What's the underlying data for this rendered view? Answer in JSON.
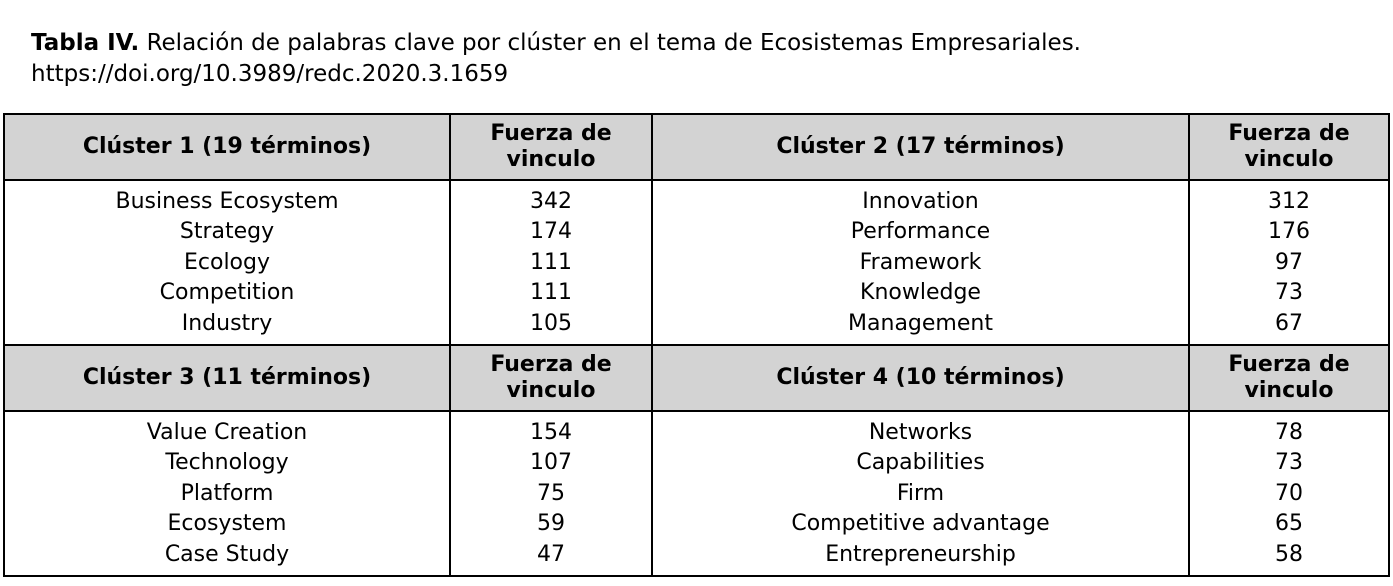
{
  "caption": {
    "label": "Tabla IV.",
    "text": "Relación de palabras clave por clúster en el tema de Ecosistemas Empresariales.",
    "doi": "https://doi.org/10.3989/redc.2020.3.1659"
  },
  "table": {
    "blocks": [
      {
        "left_header": "Clúster 1 (19 términos)",
        "left_value_header": [
          "Fuerza de",
          "vinculo"
        ],
        "right_header": "Clúster 2 (17 términos)",
        "right_value_header": [
          "Fuerza de",
          "vinculo"
        ],
        "left_terms": [
          "Business Ecosystem",
          "Strategy",
          "Ecology",
          "Competition",
          "Industry"
        ],
        "left_values": [
          "342",
          "174",
          "111",
          "111",
          "105"
        ],
        "right_terms": [
          "Innovation",
          "Performance",
          "Framework",
          "Knowledge",
          "Management"
        ],
        "right_values": [
          "312",
          "176",
          "97",
          "73",
          "67"
        ]
      },
      {
        "left_header": "Clúster 3 (11 términos)",
        "left_value_header": [
          "Fuerza de",
          "vinculo"
        ],
        "right_header": "Clúster 4 (10 términos)",
        "right_value_header": [
          "Fuerza de",
          "vinculo"
        ],
        "left_terms": [
          "Value Creation",
          "Technology",
          "Platform",
          "Ecosystem",
          "Case Study"
        ],
        "left_values": [
          "154",
          "107",
          "75",
          "59",
          "47"
        ],
        "right_terms": [
          "Networks",
          "Capabilities",
          "Firm",
          "Competitive advantage",
          "Entrepreneurship"
        ],
        "right_values": [
          "78",
          "73",
          "70",
          "65",
          "58"
        ]
      }
    ]
  }
}
